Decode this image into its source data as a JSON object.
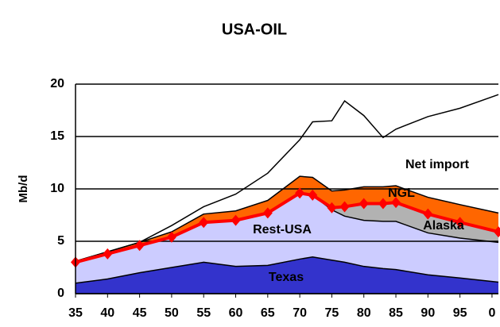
{
  "chart_data": {
    "type": "stacked-area",
    "title": "USA-OIL",
    "y_label": "Mb/d",
    "x": [
      1935,
      1940,
      1945,
      1950,
      1955,
      1960,
      1965,
      1970,
      1972,
      1975,
      1977,
      1980,
      1983,
      1985,
      1990,
      1995,
      2001
    ],
    "xlim": [
      1935,
      2001
    ],
    "xticks": [
      {
        "value": 1935,
        "label": "35"
      },
      {
        "value": 1940,
        "label": "40"
      },
      {
        "value": 1945,
        "label": "45"
      },
      {
        "value": 1950,
        "label": "50"
      },
      {
        "value": 1955,
        "label": "55"
      },
      {
        "value": 1960,
        "label": "60"
      },
      {
        "value": 1965,
        "label": "65"
      },
      {
        "value": 1970,
        "label": "70"
      },
      {
        "value": 1975,
        "label": "75"
      },
      {
        "value": 1980,
        "label": "80"
      },
      {
        "value": 1985,
        "label": "85"
      },
      {
        "value": 1990,
        "label": "90"
      },
      {
        "value": 1995,
        "label": "95"
      },
      {
        "value": 2000,
        "label": "0"
      }
    ],
    "ylim": [
      0,
      20
    ],
    "yticks": [
      0,
      5,
      10,
      15,
      20
    ],
    "grid": true,
    "series": [
      {
        "name": "Texas",
        "color": "#3333cc",
        "values": [
          1.0,
          1.4,
          2.0,
          2.5,
          3.0,
          2.6,
          2.7,
          3.3,
          3.5,
          3.2,
          3.0,
          2.6,
          2.4,
          2.3,
          1.8,
          1.5,
          1.1
        ]
      },
      {
        "name": "Rest-USA",
        "color": "#ccccff",
        "values": [
          2.0,
          2.4,
          2.6,
          2.9,
          3.8,
          4.4,
          5.0,
          6.3,
          5.9,
          4.8,
          4.4,
          4.4,
          4.5,
          4.6,
          4.0,
          3.8,
          3.8
        ]
      },
      {
        "name": "Alaska",
        "color": "#b2b2b2",
        "values": [
          0,
          0,
          0,
          0,
          0,
          0,
          0,
          0,
          0,
          0.2,
          0.9,
          1.6,
          1.7,
          1.8,
          1.8,
          1.5,
          1.0
        ]
      },
      {
        "name": "NGL",
        "color": "#ff6600",
        "values": [
          0.1,
          0.2,
          0.3,
          0.5,
          0.8,
          0.9,
          1.2,
          1.6,
          1.7,
          1.6,
          1.6,
          1.6,
          1.6,
          1.6,
          1.6,
          1.7,
          1.8
        ]
      },
      {
        "name": "Net import",
        "color": "#ffffff",
        "values": [
          0,
          0,
          0,
          0.6,
          0.7,
          1.6,
          2.6,
          3.5,
          5.3,
          6.7,
          8.5,
          6.8,
          4.7,
          5.4,
          7.7,
          9.2,
          11.3
        ]
      }
    ],
    "line": {
      "color": "#ff0000",
      "values": [
        3.0,
        3.8,
        4.6,
        5.4,
        6.8,
        7.0,
        7.7,
        9.6,
        9.4,
        8.2,
        8.3,
        8.6,
        8.6,
        8.7,
        7.6,
        6.8,
        5.9
      ]
    }
  }
}
